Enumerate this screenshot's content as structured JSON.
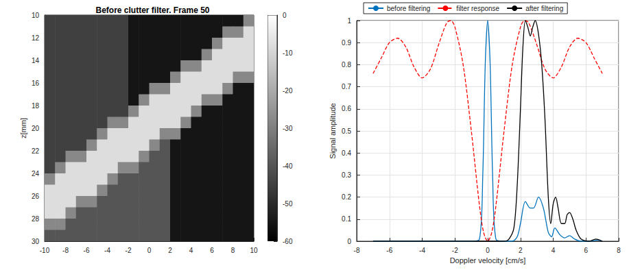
{
  "chart_data": [
    {
      "type": "heatmap",
      "title": "Before clutter filter. Frame 50",
      "y_label": "z[mm]",
      "x": [
        -9.5,
        -8.5,
        -7.5,
        -6.5,
        -5.5,
        -4.5,
        -3.5,
        -2.5,
        -1.5,
        -0.5,
        0.5,
        1.5,
        2.5,
        3.5,
        4.5,
        5.5,
        6.5,
        7.5,
        8.5,
        9.5
      ],
      "y": [
        10.5,
        11.5,
        12.5,
        13.5,
        14.5,
        15.5,
        16.5,
        17.5,
        18.5,
        19.5,
        20.5,
        21.5,
        22.5,
        23.5,
        24.5,
        25.5,
        26.5,
        27.5,
        28.5,
        29.5
      ],
      "values": [
        [
          -45,
          -45,
          -45,
          -45,
          -45,
          -45,
          -45,
          -45,
          -55,
          -55,
          -55,
          -55,
          -55,
          -55,
          -55,
          -55,
          -55,
          -55,
          -55,
          -28
        ],
        [
          -45,
          -45,
          -45,
          -45,
          -45,
          -45,
          -45,
          -45,
          -55,
          -55,
          -55,
          -55,
          -55,
          -55,
          -55,
          -55,
          -55,
          -28,
          -28,
          -8
        ],
        [
          -45,
          -45,
          -45,
          -45,
          -45,
          -45,
          -45,
          -45,
          -55,
          -55,
          -55,
          -55,
          -55,
          -55,
          -55,
          -55,
          -28,
          -8,
          -8,
          -8
        ],
        [
          -45,
          -45,
          -45,
          -45,
          -45,
          -45,
          -45,
          -45,
          -55,
          -55,
          -55,
          -55,
          -55,
          -55,
          -55,
          -28,
          -8,
          -8,
          -8,
          -8
        ],
        [
          -45,
          -45,
          -45,
          -45,
          -45,
          -45,
          -45,
          -45,
          -55,
          -55,
          -55,
          -55,
          -55,
          -28,
          -28,
          -8,
          -8,
          -8,
          -8,
          -8
        ],
        [
          -45,
          -45,
          -45,
          -45,
          -45,
          -45,
          -45,
          -45,
          -55,
          -55,
          -55,
          -55,
          -28,
          -8,
          -8,
          -8,
          -8,
          -8,
          -28,
          -28
        ],
        [
          -45,
          -45,
          -45,
          -45,
          -45,
          -45,
          -45,
          -45,
          -55,
          -55,
          -28,
          -28,
          -8,
          -8,
          -8,
          -8,
          -8,
          -28,
          -55,
          -55
        ],
        [
          -45,
          -45,
          -45,
          -45,
          -45,
          -45,
          -45,
          -45,
          -55,
          -28,
          -8,
          -8,
          -8,
          -8,
          -8,
          -28,
          -28,
          -55,
          -55,
          -55
        ],
        [
          -45,
          -45,
          -45,
          -45,
          -45,
          -45,
          -45,
          -45,
          -28,
          -8,
          -8,
          -8,
          -8,
          -8,
          -28,
          -55,
          -55,
          -55,
          -55,
          -55
        ],
        [
          -45,
          -45,
          -45,
          -45,
          -45,
          -45,
          -28,
          -28,
          -8,
          -8,
          -8,
          -8,
          -8,
          -28,
          -55,
          -55,
          -55,
          -55,
          -55,
          -55
        ],
        [
          -45,
          -45,
          -45,
          -45,
          -45,
          -28,
          -8,
          -8,
          -8,
          -8,
          -8,
          -28,
          -28,
          -55,
          -55,
          -55,
          -55,
          -55,
          -55,
          -55
        ],
        [
          -45,
          -45,
          -45,
          -45,
          -28,
          -8,
          -8,
          -8,
          -8,
          -8,
          -28,
          -40,
          -55,
          -55,
          -55,
          -55,
          -55,
          -55,
          -55,
          -55
        ],
        [
          -45,
          -45,
          -28,
          -28,
          -8,
          -8,
          -8,
          -8,
          -8,
          -28,
          -40,
          -40,
          -55,
          -55,
          -55,
          -55,
          -55,
          -55,
          -55,
          -55
        ],
        [
          -45,
          -28,
          -8,
          -8,
          -8,
          -8,
          -8,
          -28,
          -28,
          -40,
          -40,
          -40,
          -55,
          -55,
          -55,
          -55,
          -55,
          -55,
          -55,
          -55
        ],
        [
          -28,
          -8,
          -8,
          -8,
          -8,
          -8,
          -28,
          -40,
          -40,
          -40,
          -40,
          -40,
          -55,
          -55,
          -55,
          -55,
          -55,
          -55,
          -55,
          -55
        ],
        [
          -8,
          -8,
          -8,
          -8,
          -8,
          -28,
          -40,
          -40,
          -40,
          -40,
          -40,
          -40,
          -55,
          -55,
          -55,
          -55,
          -55,
          -55,
          -55,
          -55
        ],
        [
          -8,
          -8,
          -8,
          -28,
          -28,
          -40,
          -40,
          -40,
          -40,
          -40,
          -40,
          -40,
          -55,
          -55,
          -55,
          -55,
          -55,
          -55,
          -55,
          -55
        ],
        [
          -8,
          -8,
          -28,
          -40,
          -40,
          -40,
          -40,
          -40,
          -40,
          -40,
          -40,
          -40,
          -55,
          -55,
          -55,
          -55,
          -55,
          -55,
          -55,
          -55
        ],
        [
          -28,
          -28,
          -40,
          -40,
          -40,
          -40,
          -40,
          -40,
          -40,
          -40,
          -40,
          -40,
          -55,
          -55,
          -55,
          -55,
          -55,
          -55,
          -55,
          -55
        ],
        [
          -40,
          -40,
          -40,
          -40,
          -40,
          -40,
          -40,
          -40,
          -40,
          -40,
          -40,
          -40,
          -55,
          -55,
          -55,
          -55,
          -55,
          -55,
          -55,
          -55
        ]
      ],
      "xlim": [
        -10,
        10
      ],
      "xticks": [
        -10,
        -8,
        -6,
        -4,
        -2,
        0,
        2,
        4,
        6,
        8,
        10
      ],
      "ylim": [
        30,
        10
      ],
      "yticks": [
        10,
        12,
        14,
        16,
        18,
        20,
        22,
        24,
        26,
        28,
        30
      ],
      "colorbar": {
        "range": [
          -60,
          0
        ],
        "ticks": [
          0,
          -10,
          -20,
          -30,
          -40,
          -50,
          -60
        ]
      }
    },
    {
      "type": "line",
      "x_label": "Doppler velocity [cm/s]",
      "y_label": "Signal amplitude",
      "series": [
        {
          "name": "before filtering",
          "color": "#0072bd",
          "line_style": "solid",
          "x": [
            -7,
            -1,
            -0.5,
            -0.3,
            -0.15,
            0,
            0.15,
            0.3,
            0.5,
            1,
            1.5,
            1.8,
            2,
            2.3,
            2.6,
            2.8,
            3.1,
            3.4,
            3.7,
            3.9,
            4.1,
            4.4,
            4.7,
            5,
            5.3,
            5.7,
            6.3,
            6.7,
            7
          ],
          "values": [
            0,
            0,
            0.01,
            0.3,
            0.8,
            1,
            0.8,
            0.3,
            0.01,
            0,
            0,
            0.02,
            0.08,
            0.18,
            0.15,
            0.15,
            0.2,
            0.15,
            0.04,
            0.02,
            0.06,
            0.03,
            0.015,
            0.025,
            0.01,
            0,
            0,
            0.005,
            0
          ]
        },
        {
          "name": "filter response",
          "color": "#ff0000",
          "line_style": "dashed",
          "x": [
            -7,
            -6.5,
            -6,
            -5.5,
            -5,
            -4.5,
            -4,
            -3.5,
            -3,
            -2.5,
            -2.25,
            -2,
            -1.5,
            -1,
            -0.5,
            -0.25,
            0,
            0.25,
            0.5,
            1,
            1.5,
            2,
            2.25,
            2.5,
            3,
            3.5,
            4,
            4.5,
            5,
            5.5,
            6,
            6.5,
            7
          ],
          "values": [
            0.76,
            0.83,
            0.9,
            0.92,
            0.88,
            0.79,
            0.74,
            0.78,
            0.89,
            0.99,
            1.0,
            0.97,
            0.8,
            0.5,
            0.16,
            0.04,
            0,
            0.04,
            0.16,
            0.5,
            0.8,
            0.97,
            1.0,
            0.99,
            0.89,
            0.78,
            0.74,
            0.79,
            0.88,
            0.92,
            0.9,
            0.83,
            0.76
          ]
        },
        {
          "name": "after filtering",
          "color": "#000000",
          "line_style": "solid",
          "x": [
            -7,
            1,
            1.3,
            1.6,
            1.8,
            2,
            2.15,
            2.3,
            2.45,
            2.6,
            2.75,
            2.9,
            3.1,
            3.3,
            3.5,
            3.7,
            3.85,
            4,
            4.15,
            4.3,
            4.5,
            4.7,
            4.85,
            5,
            5.2,
            5.4,
            5.7,
            6.2,
            6.6,
            7
          ],
          "values": [
            0,
            0,
            0.01,
            0.06,
            0.25,
            0.6,
            0.88,
            1.0,
            0.97,
            0.93,
            0.97,
            1.0,
            0.94,
            0.8,
            0.55,
            0.2,
            0.08,
            0.17,
            0.2,
            0.15,
            0.08,
            0.08,
            0.12,
            0.13,
            0.1,
            0.05,
            0.01,
            0.0,
            0.01,
            0
          ]
        }
      ],
      "xlim": [
        -8,
        8
      ],
      "xticks": [
        -8,
        -6,
        -4,
        -2,
        0,
        2,
        4,
        6,
        8
      ],
      "ylim": [
        0,
        1
      ],
      "yticks": [
        0,
        0.1,
        0.2,
        0.3,
        0.4,
        0.5,
        0.6,
        0.7,
        0.8,
        0.9,
        1
      ],
      "grid": true,
      "legend": "top"
    }
  ]
}
